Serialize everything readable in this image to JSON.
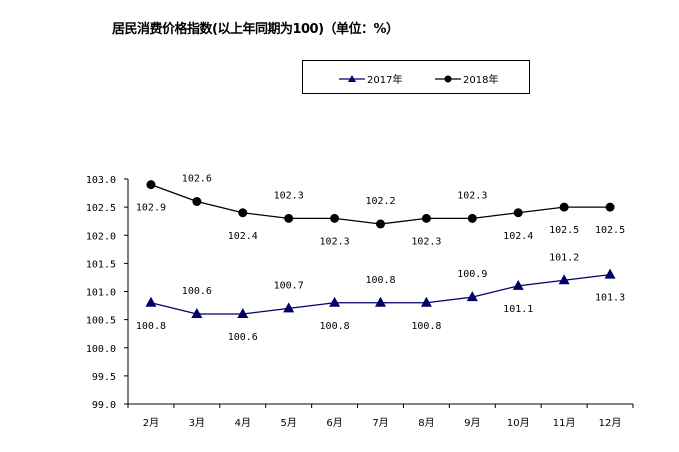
{
  "chart_data": {
    "type": "line",
    "title": "居民消费价格指数(以上年同期为100)（单位：%）",
    "xlabel": "",
    "ylabel": "",
    "categories": [
      "2月",
      "3月",
      "4月",
      "5月",
      "6月",
      "7月",
      "8月",
      "9月",
      "10月",
      "11月",
      "12月"
    ],
    "ylim": [
      99.0,
      103.0
    ],
    "yticks": [
      "99.0",
      "99.5",
      "100.0",
      "100.5",
      "101.0",
      "101.5",
      "102.0",
      "102.5",
      "103.0"
    ],
    "grid": false,
    "legend_position": "top-center",
    "series": [
      {
        "name": "2017年",
        "marker": "triangle",
        "color": "#000066",
        "values": [
          100.8,
          100.6,
          100.6,
          100.7,
          100.8,
          100.8,
          100.8,
          100.9,
          101.1,
          101.2,
          101.3
        ],
        "labels": [
          "100.8",
          "100.6",
          "100.6",
          "100.7",
          "100.8",
          "100.8",
          "100.8",
          "100.9",
          "101.1",
          "101.2",
          "101.3"
        ],
        "label_positions": [
          "below",
          "above",
          "below",
          "above",
          "below",
          "above",
          "below",
          "above",
          "below",
          "above",
          "below"
        ]
      },
      {
        "name": "2018年",
        "marker": "circle",
        "color": "#000000",
        "values": [
          102.9,
          102.6,
          102.4,
          102.3,
          102.3,
          102.2,
          102.3,
          102.3,
          102.4,
          102.5,
          102.5
        ],
        "labels": [
          "102.9",
          "102.6",
          "102.4",
          "102.3",
          "102.3",
          "102.2",
          "102.3",
          "102.3",
          "102.4",
          "102.5",
          "102.5"
        ],
        "label_positions": [
          "below",
          "above",
          "below",
          "above",
          "below",
          "above",
          "below",
          "above",
          "below",
          "below",
          "below"
        ]
      }
    ]
  }
}
